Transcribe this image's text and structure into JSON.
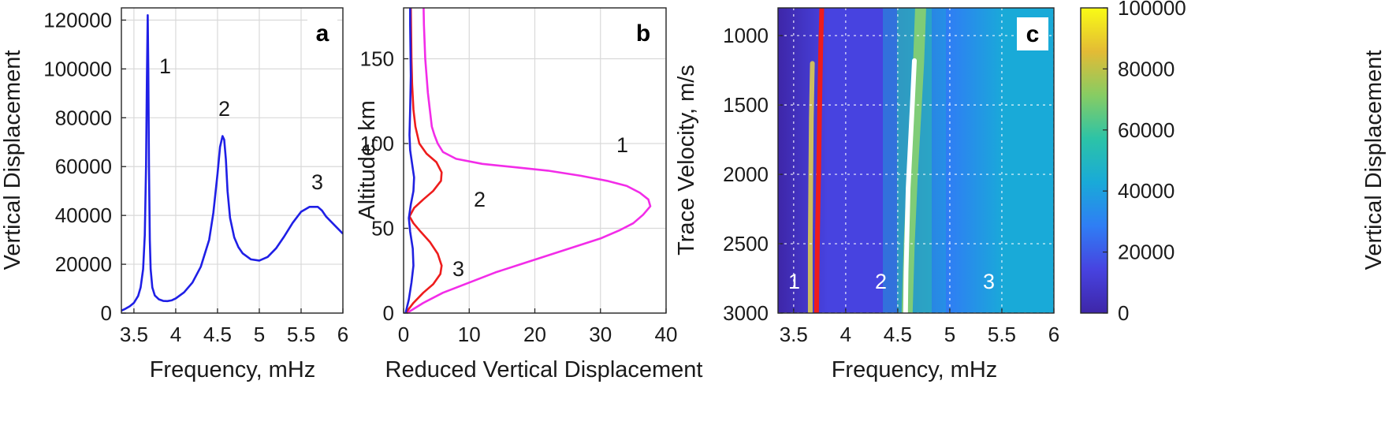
{
  "chart_data": [
    {
      "panel": "a",
      "type": "line",
      "xlabel": "Frequency, mHz",
      "ylabel": "Vertical Displacement",
      "xlim": [
        3.35,
        6.0
      ],
      "ylim": [
        0,
        125000
      ],
      "xticks": [
        3.5,
        4,
        4.5,
        5,
        5.5,
        6
      ],
      "xtick_labels": [
        "3.5",
        "4",
        "4.5",
        "5",
        "5.5",
        "6"
      ],
      "yticks": [
        0,
        20000,
        40000,
        60000,
        80000,
        100000,
        120000
      ],
      "ytick_labels": [
        "0",
        "20000",
        "40000",
        "60000",
        "80000",
        "100000",
        "120000"
      ],
      "grid": true,
      "series": [
        {
          "color": "#1f1fe6",
          "x": [
            3.35,
            3.4,
            3.45,
            3.5,
            3.55,
            3.58,
            3.61,
            3.63,
            3.645,
            3.655,
            3.665,
            3.672,
            3.68,
            3.69,
            3.7,
            3.72,
            3.75,
            3.8,
            3.85,
            3.9,
            3.95,
            4.0,
            4.1,
            4.2,
            4.3,
            4.4,
            4.45,
            4.5,
            4.53,
            4.56,
            4.58,
            4.6,
            4.62,
            4.65,
            4.7,
            4.75,
            4.8,
            4.9,
            5.0,
            5.1,
            5.2,
            5.3,
            5.4,
            5.5,
            5.6,
            5.7,
            5.75,
            5.8,
            5.9,
            6.0
          ],
          "y": [
            1000,
            1800,
            2800,
            4200,
            7000,
            10500,
            18000,
            32000,
            60000,
            95000,
            122000,
            100000,
            60000,
            30000,
            18000,
            10500,
            7200,
            5600,
            5000,
            4900,
            5200,
            6000,
            8500,
            12500,
            19000,
            30000,
            41000,
            57000,
            68000,
            72500,
            71000,
            63000,
            50000,
            39000,
            31000,
            27000,
            24500,
            22000,
            21500,
            23000,
            26500,
            31500,
            37000,
            41500,
            43500,
            43500,
            42000,
            39500,
            36000,
            32500
          ]
        }
      ],
      "annotations": [
        "1",
        "2",
        "3"
      ]
    },
    {
      "panel": "b",
      "type": "line",
      "xlabel": "Reduced Vertical Displacement",
      "ylabel": "Altitude, km",
      "xlim": [
        0,
        40
      ],
      "ylim": [
        0,
        180
      ],
      "xticks": [
        0,
        10,
        20,
        30,
        40
      ],
      "xtick_labels": [
        "0",
        "10",
        "20",
        "30",
        "40"
      ],
      "yticks": [
        0,
        50,
        100,
        150
      ],
      "ytick_labels": [
        "0",
        "50",
        "100",
        "150"
      ],
      "grid": true,
      "series": [
        {
          "color": "#f22ce8",
          "x": [
            0.5,
            3,
            6,
            10,
            14,
            18,
            22,
            26,
            30,
            33,
            35,
            36.5,
            37.6,
            37.3,
            36,
            34,
            31,
            27,
            22,
            17,
            12,
            8,
            6,
            5.2,
            4.7,
            4.3,
            4.0,
            3.7,
            3.5,
            3.3,
            3.2,
            3.1,
            3.05
          ],
          "y": [
            0,
            6,
            12,
            18,
            24,
            29,
            34,
            39,
            44,
            49,
            53,
            58,
            63,
            67,
            71,
            75,
            78,
            81,
            84,
            86,
            88,
            91,
            95,
            100,
            105,
            110,
            120,
            130,
            140,
            150,
            160,
            170,
            180
          ]
        },
        {
          "color": "#ee1c1c",
          "x": [
            0.3,
            1.5,
            3,
            4.5,
            5.6,
            5.8,
            5.2,
            4,
            2.6,
            1.5,
            0.9,
            1.6,
            3,
            4.5,
            5.7,
            5.8,
            5,
            3.5,
            2.4,
            1.8,
            1.5,
            1.3,
            1.2,
            1.15,
            1.1
          ],
          "y": [
            0,
            6,
            12,
            17,
            23,
            28,
            35,
            42,
            48,
            53,
            57,
            62,
            67,
            72,
            78,
            83,
            89,
            94,
            100,
            110,
            120,
            135,
            150,
            165,
            180
          ]
        },
        {
          "color": "#2020e0",
          "x": [
            0.3,
            0.8,
            1.2,
            1.5,
            1.4,
            1.0,
            0.8,
            1.1,
            1.5,
            1.6,
            1.3,
            1.0,
            0.9,
            1.0,
            1.1,
            1.05,
            1.0,
            1.0
          ],
          "y": [
            0,
            8,
            18,
            28,
            38,
            48,
            56,
            64,
            72,
            80,
            88,
            96,
            105,
            120,
            140,
            155,
            170,
            180
          ]
        }
      ],
      "annotations": [
        "1",
        "2",
        "3"
      ]
    },
    {
      "panel": "c",
      "type": "heatmap",
      "xlabel": "Frequency, mHz",
      "ylabel": "Trace Velocity, m/s",
      "colorbar_label": "Vertical Displacement",
      "xlim": [
        3.35,
        6.0
      ],
      "ylim": [
        3000,
        800
      ],
      "xticks": [
        3.5,
        4,
        4.5,
        5,
        5.5,
        6
      ],
      "xtick_labels": [
        "3.5",
        "4",
        "4.5",
        "5",
        "5.5",
        "6"
      ],
      "yticks": [
        1000,
        1500,
        2000,
        2500,
        3000
      ],
      "ytick_labels": [
        "1000",
        "1500",
        "2000",
        "2500",
        "3000"
      ],
      "cbar_ticks": [
        0,
        20000,
        40000,
        60000,
        80000,
        100000
      ],
      "cbar_tick_labels": [
        "0",
        "20000",
        "40000",
        "60000",
        "80000",
        "100000"
      ],
      "colormap": [
        "#3e26a8",
        "#4743e0",
        "#2f7ef4",
        "#19aad8",
        "#2cc3a7",
        "#87cc63",
        "#e3bb35",
        "#f9fb15"
      ],
      "overlay_curves": [
        {
          "color": "#ee1c1c",
          "x": [
            3.77,
            3.76,
            3.75,
            3.74,
            3.73,
            3.725,
            3.72
          ],
          "y": [
            800,
            1100,
            1500,
            2000,
            2400,
            2700,
            3000
          ]
        },
        {
          "color": "#ffffff",
          "x": [
            4.66,
            4.64,
            4.62,
            4.6,
            4.59,
            4.58,
            4.575
          ],
          "y": [
            1180,
            1500,
            1800,
            2100,
            2400,
            2700,
            3000
          ]
        }
      ],
      "ridges": [
        {
          "color": "#e6d54a",
          "x": [
            3.68,
            3.67,
            3.665,
            3.66,
            3.66
          ],
          "y": [
            1200,
            1600,
            2000,
            2500,
            3000
          ]
        },
        {
          "color": "#8ed36a",
          "x": [
            4.72,
            4.7,
            4.67,
            4.64,
            4.61,
            4.59
          ],
          "y": [
            800,
            1200,
            1600,
            2000,
            2500,
            3000
          ]
        }
      ],
      "annotations": [
        "1",
        "2",
        "3"
      ]
    }
  ],
  "panel_labels": [
    "a",
    "b",
    "c"
  ]
}
